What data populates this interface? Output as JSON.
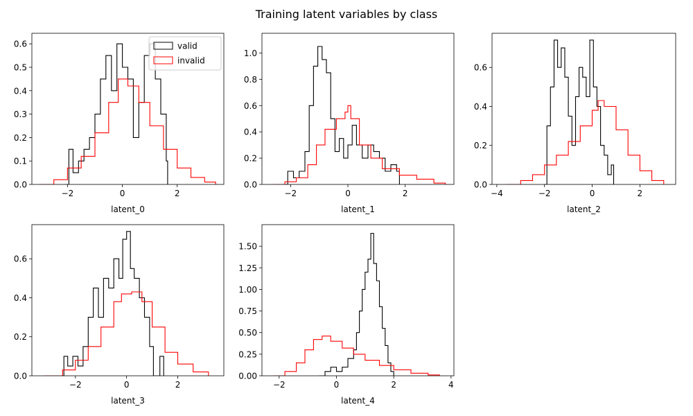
{
  "figure": {
    "title": "Training latent variables by class"
  },
  "colors": {
    "valid": "#000000",
    "invalid": "#ff0000"
  },
  "chart_data": [
    {
      "type": "histogram",
      "xlabel": "latent_0",
      "xlim": [
        -3.3,
        3.7
      ],
      "ylim": [
        0,
        0.645
      ],
      "xticks": [
        -2,
        0,
        2
      ],
      "xtick_labels": [
        "−2",
        "0",
        "2"
      ],
      "yticks": [
        0.0,
        0.1,
        0.2,
        0.3,
        0.4,
        0.5,
        0.6
      ],
      "ytick_labels": [
        "0.0",
        "0.1",
        "0.2",
        "0.3",
        "0.4",
        "0.5",
        "0.6"
      ],
      "legend": {
        "placement": "top-right",
        "entries": [
          "valid",
          "invalid"
        ]
      },
      "series": [
        {
          "name": "valid",
          "color": "#000000",
          "points": [
            [
              -2.1,
              0.0
            ],
            [
              -1.95,
              0.15
            ],
            [
              -1.8,
              0.05
            ],
            [
              -1.6,
              0.1
            ],
            [
              -1.4,
              0.15
            ],
            [
              -1.2,
              0.2
            ],
            [
              -1.0,
              0.3
            ],
            [
              -0.8,
              0.45
            ],
            [
              -0.6,
              0.55
            ],
            [
              -0.4,
              0.4
            ],
            [
              -0.2,
              0.6
            ],
            [
              0.0,
              0.5
            ],
            [
              0.2,
              0.45
            ],
            [
              0.4,
              0.2
            ],
            [
              0.6,
              0.35
            ],
            [
              0.8,
              0.55
            ],
            [
              1.0,
              0.6
            ],
            [
              1.2,
              0.45
            ],
            [
              1.4,
              0.3
            ],
            [
              1.6,
              0.1
            ],
            [
              1.65,
              0.0
            ]
          ]
        },
        {
          "name": "invalid",
          "color": "#ff0000",
          "points": [
            [
              -3.0,
              0.0
            ],
            [
              -2.5,
              0.02
            ],
            [
              -2.0,
              0.07
            ],
            [
              -1.5,
              0.12
            ],
            [
              -1.0,
              0.22
            ],
            [
              -0.5,
              0.35
            ],
            [
              -0.15,
              0.45
            ],
            [
              0.2,
              0.42
            ],
            [
              0.6,
              0.35
            ],
            [
              1.0,
              0.25
            ],
            [
              1.5,
              0.15
            ],
            [
              2.0,
              0.07
            ],
            [
              2.5,
              0.03
            ],
            [
              3.0,
              0.01
            ],
            [
              3.4,
              0.0
            ]
          ]
        }
      ]
    },
    {
      "type": "histogram",
      "xlabel": "latent_1",
      "xlim": [
        -3.0,
        3.7
      ],
      "ylim": [
        0,
        1.15
      ],
      "xticks": [
        -2,
        0,
        2
      ],
      "xtick_labels": [
        "−2",
        "0",
        "2"
      ],
      "yticks": [
        0.0,
        0.2,
        0.4,
        0.6,
        0.8,
        1.0
      ],
      "ytick_labels": [
        "0.0",
        "0.2",
        "0.4",
        "0.6",
        "0.8",
        "1.0"
      ],
      "series": [
        {
          "name": "valid",
          "color": "#000000",
          "points": [
            [
              -2.2,
              0.0
            ],
            [
              -2.1,
              0.1
            ],
            [
              -1.9,
              0.05
            ],
            [
              -1.7,
              0.1
            ],
            [
              -1.5,
              0.25
            ],
            [
              -1.35,
              0.6
            ],
            [
              -1.2,
              0.9
            ],
            [
              -1.05,
              1.05
            ],
            [
              -0.9,
              0.95
            ],
            [
              -0.75,
              0.85
            ],
            [
              -0.6,
              0.5
            ],
            [
              -0.45,
              0.25
            ],
            [
              -0.3,
              0.35
            ],
            [
              -0.15,
              0.2
            ],
            [
              0.0,
              0.3
            ],
            [
              0.15,
              0.45
            ],
            [
              0.3,
              0.3
            ],
            [
              0.5,
              0.2
            ],
            [
              0.7,
              0.3
            ],
            [
              0.9,
              0.25
            ],
            [
              1.1,
              0.2
            ],
            [
              1.3,
              0.1
            ],
            [
              1.5,
              0.15
            ],
            [
              1.7,
              0.1
            ],
            [
              1.8,
              0.0
            ]
          ]
        },
        {
          "name": "invalid",
          "color": "#ff0000",
          "points": [
            [
              -2.6,
              0.0
            ],
            [
              -2.2,
              0.02
            ],
            [
              -1.8,
              0.05
            ],
            [
              -1.4,
              0.15
            ],
            [
              -1.1,
              0.3
            ],
            [
              -0.8,
              0.42
            ],
            [
              -0.4,
              0.5
            ],
            [
              -0.1,
              0.55
            ],
            [
              0.0,
              0.6
            ],
            [
              0.1,
              0.5
            ],
            [
              0.4,
              0.3
            ],
            [
              0.8,
              0.2
            ],
            [
              1.2,
              0.12
            ],
            [
              1.8,
              0.07
            ],
            [
              2.4,
              0.04
            ],
            [
              3.0,
              0.01
            ],
            [
              3.4,
              0.0
            ]
          ]
        }
      ]
    },
    {
      "type": "histogram",
      "xlabel": "latent_2",
      "xlim": [
        -4.2,
        3.5
      ],
      "ylim": [
        0,
        0.775
      ],
      "xticks": [
        -4,
        -2,
        0,
        2
      ],
      "xtick_labels": [
        "−4",
        "−2",
        "0",
        "2"
      ],
      "yticks": [
        0.0,
        0.2,
        0.4,
        0.6
      ],
      "ytick_labels": [
        "0.0",
        "0.2",
        "0.4",
        "0.6"
      ],
      "series": [
        {
          "name": "valid",
          "color": "#000000",
          "points": [
            [
              -2.0,
              0.0
            ],
            [
              -1.9,
              0.3
            ],
            [
              -1.75,
              0.5
            ],
            [
              -1.6,
              0.74
            ],
            [
              -1.45,
              0.6
            ],
            [
              -1.3,
              0.7
            ],
            [
              -1.15,
              0.55
            ],
            [
              -1.0,
              0.35
            ],
            [
              -0.85,
              0.2
            ],
            [
              -0.7,
              0.45
            ],
            [
              -0.55,
              0.6
            ],
            [
              -0.4,
              0.55
            ],
            [
              -0.25,
              0.45
            ],
            [
              -0.1,
              0.74
            ],
            [
              0.05,
              0.5
            ],
            [
              0.2,
              0.4
            ],
            [
              0.35,
              0.2
            ],
            [
              0.5,
              0.15
            ],
            [
              0.65,
              0.05
            ],
            [
              0.8,
              0.1
            ],
            [
              0.9,
              0.0
            ]
          ]
        },
        {
          "name": "invalid",
          "color": "#ff0000",
          "points": [
            [
              -3.6,
              0.0
            ],
            [
              -3.0,
              0.02
            ],
            [
              -2.5,
              0.05
            ],
            [
              -2.0,
              0.1
            ],
            [
              -1.5,
              0.15
            ],
            [
              -1.0,
              0.22
            ],
            [
              -0.5,
              0.3
            ],
            [
              0.0,
              0.38
            ],
            [
              0.25,
              0.43
            ],
            [
              0.5,
              0.4
            ],
            [
              1.0,
              0.28
            ],
            [
              1.5,
              0.15
            ],
            [
              2.0,
              0.07
            ],
            [
              2.5,
              0.02
            ],
            [
              3.0,
              0.0
            ]
          ]
        }
      ]
    },
    {
      "type": "histogram",
      "xlabel": "latent_3",
      "xlim": [
        -3.7,
        3.8
      ],
      "ylim": [
        0,
        0.775
      ],
      "xticks": [
        -2,
        0,
        2
      ],
      "xtick_labels": [
        "−2",
        "0",
        "2"
      ],
      "yticks": [
        0.0,
        0.2,
        0.4,
        0.6
      ],
      "ytick_labels": [
        "0.0",
        "0.2",
        "0.4",
        "0.6"
      ],
      "series": [
        {
          "name": "valid",
          "color": "#000000",
          "points": [
            [
              -2.6,
              0.0
            ],
            [
              -2.45,
              0.1
            ],
            [
              -2.3,
              0.05
            ],
            [
              -2.1,
              0.1
            ],
            [
              -1.9,
              0.05
            ],
            [
              -1.7,
              0.15
            ],
            [
              -1.5,
              0.3
            ],
            [
              -1.3,
              0.45
            ],
            [
              -1.1,
              0.3
            ],
            [
              -0.9,
              0.5
            ],
            [
              -0.7,
              0.45
            ],
            [
              -0.5,
              0.6
            ],
            [
              -0.3,
              0.5
            ],
            [
              -0.15,
              0.7
            ],
            [
              0.0,
              0.74
            ],
            [
              0.15,
              0.55
            ],
            [
              0.3,
              0.5
            ],
            [
              0.5,
              0.4
            ],
            [
              0.7,
              0.3
            ],
            [
              0.9,
              0.15
            ],
            [
              1.05,
              0.0
            ],
            [
              1.3,
              0.1
            ],
            [
              1.45,
              0.0
            ]
          ]
        },
        {
          "name": "invalid",
          "color": "#ff0000",
          "points": [
            [
              -3.2,
              0.0
            ],
            [
              -2.5,
              0.03
            ],
            [
              -2.0,
              0.08
            ],
            [
              -1.5,
              0.15
            ],
            [
              -1.0,
              0.25
            ],
            [
              -0.5,
              0.38
            ],
            [
              -0.2,
              0.42
            ],
            [
              0.2,
              0.43
            ],
            [
              0.6,
              0.38
            ],
            [
              1.0,
              0.25
            ],
            [
              1.5,
              0.12
            ],
            [
              2.0,
              0.06
            ],
            [
              2.6,
              0.02
            ],
            [
              3.2,
              0.0
            ]
          ]
        }
      ]
    },
    {
      "type": "histogram",
      "xlabel": "latent_4",
      "xlim": [
        -2.6,
        4.1
      ],
      "ylim": [
        0,
        1.75
      ],
      "xticks": [
        -2,
        0,
        2,
        4
      ],
      "xtick_labels": [
        "−2",
        "0",
        "2",
        "4"
      ],
      "yticks": [
        0.0,
        0.25,
        0.5,
        0.75,
        1.0,
        1.25,
        1.5
      ],
      "ytick_labels": [
        "0.00",
        "0.25",
        "0.50",
        "0.75",
        "1.00",
        "1.25",
        "1.50"
      ],
      "series": [
        {
          "name": "valid",
          "color": "#000000",
          "points": [
            [
              -0.6,
              0.0
            ],
            [
              -0.4,
              0.05
            ],
            [
              -0.2,
              0.1
            ],
            [
              0.0,
              0.05
            ],
            [
              0.2,
              0.1
            ],
            [
              0.4,
              0.2
            ],
            [
              0.6,
              0.3
            ],
            [
              0.7,
              0.5
            ],
            [
              0.8,
              0.75
            ],
            [
              0.9,
              1.0
            ],
            [
              1.0,
              1.2
            ],
            [
              1.1,
              1.35
            ],
            [
              1.2,
              1.65
            ],
            [
              1.3,
              1.3
            ],
            [
              1.4,
              1.1
            ],
            [
              1.5,
              0.8
            ],
            [
              1.6,
              0.55
            ],
            [
              1.7,
              0.35
            ],
            [
              1.8,
              0.15
            ],
            [
              1.9,
              0.05
            ],
            [
              2.0,
              0.0
            ]
          ]
        },
        {
          "name": "invalid",
          "color": "#ff0000",
          "points": [
            [
              -2.2,
              0.0
            ],
            [
              -1.8,
              0.05
            ],
            [
              -1.4,
              0.15
            ],
            [
              -1.1,
              0.3
            ],
            [
              -0.8,
              0.42
            ],
            [
              -0.5,
              0.46
            ],
            [
              -0.2,
              0.4
            ],
            [
              0.2,
              0.32
            ],
            [
              0.6,
              0.25
            ],
            [
              1.0,
              0.18
            ],
            [
              1.5,
              0.12
            ],
            [
              2.0,
              0.07
            ],
            [
              2.6,
              0.03
            ],
            [
              3.2,
              0.01
            ],
            [
              3.6,
              0.0
            ]
          ]
        }
      ]
    }
  ]
}
